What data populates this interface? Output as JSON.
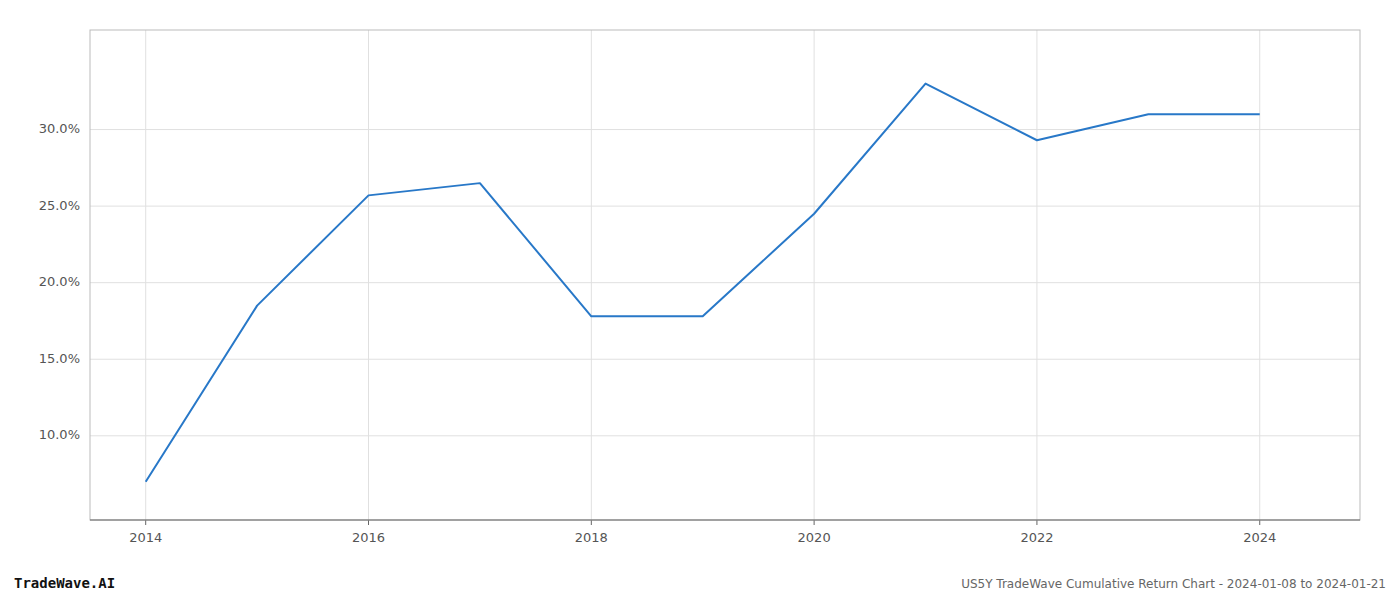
{
  "chart_data": {
    "type": "line",
    "x": [
      2014,
      2015,
      2016,
      2017,
      2018,
      2019,
      2020,
      2021,
      2022,
      2023,
      2024
    ],
    "values": [
      7.0,
      18.5,
      25.7,
      26.5,
      17.8,
      17.8,
      24.5,
      33.0,
      29.3,
      31.0,
      31.0
    ],
    "color": "#2878c8",
    "xlim": [
      2013.5,
      2024.9
    ],
    "ylim": [
      4.5,
      36.5
    ],
    "xticks": [
      2014,
      2016,
      2018,
      2020,
      2022,
      2024
    ],
    "yticks": [
      {
        "value": 10.0,
        "label": "10.0%"
      },
      {
        "value": 15.0,
        "label": "15.0%"
      },
      {
        "value": 20.0,
        "label": "20.0%"
      },
      {
        "value": 25.0,
        "label": "25.0%"
      },
      {
        "value": 30.0,
        "label": "30.0%"
      }
    ],
    "grid": true,
    "annotations": [
      "TradeWave.AI",
      "US5Y TradeWave Cumulative Return Chart - 2024-01-08 to 2024-01-21"
    ]
  }
}
